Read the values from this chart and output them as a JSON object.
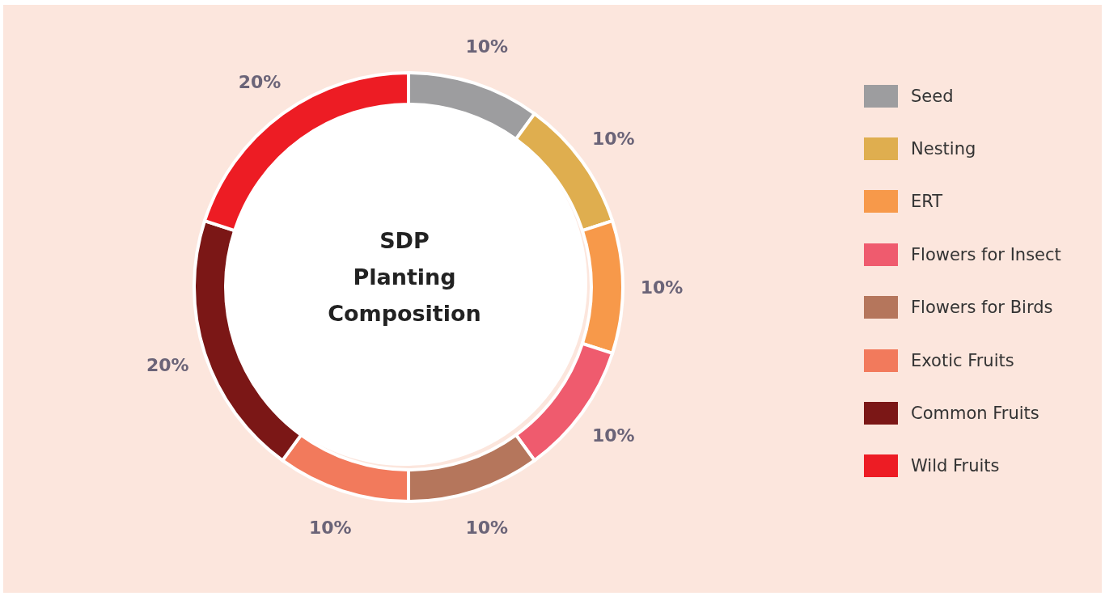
{
  "chart_data": {
    "type": "donut",
    "title": "SDP Planting Composition",
    "categories": [
      "Seed",
      "Nesting",
      "ERT",
      "Flowers for Insect",
      "Flowers for Birds",
      "Exotic Fruits",
      "Common Fruits",
      "Wild Fruits"
    ],
    "values": [
      10,
      10,
      10,
      10,
      10,
      10,
      20,
      20
    ],
    "colors": [
      "#9d9d9f",
      "#dfae4f",
      "#f7994a",
      "#ef5b6e",
      "#b5765c",
      "#f27a5c",
      "#7b1716",
      "#ed1c24"
    ],
    "value_labels": [
      "10%",
      "10%",
      "10%",
      "10%",
      "10%",
      "10%",
      "20%",
      "20%"
    ],
    "legend": "right"
  }
}
